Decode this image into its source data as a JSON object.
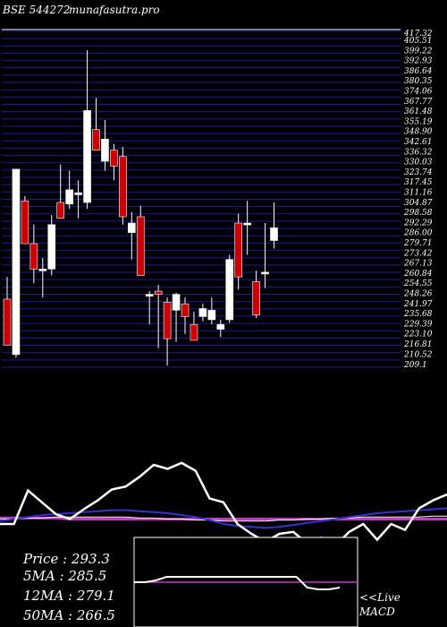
{
  "header": {
    "exchange_code": "BSE 544272",
    "site": "munafasutra.pro"
  },
  "price_axis": {
    "ymin": 205,
    "ymax": 417,
    "top_label": "417.32",
    "tick_labels": [
      "405.51",
      "399.22",
      "392.93",
      "386.64",
      "380.35",
      "374.06",
      "367.77",
      "361.48",
      "355.19",
      "348.90",
      "342.61",
      "336.32",
      "330.03",
      "323.74",
      "317.45",
      "311.16",
      "304.87",
      "298.58",
      "292.29",
      "286.00",
      "279.71",
      "273.42",
      "267.13",
      "260.84",
      "254.55",
      "248.26",
      "241.97",
      "235.68",
      "229.39",
      "223.10",
      "216.81",
      "210.52"
    ],
    "bottom_label": "209.1"
  },
  "colors": {
    "up": "#ffffff",
    "down": "#cc0000",
    "grid": "#1a1aa0",
    "ma5": "#3333cc",
    "ma_long": "#cc33cc",
    "macd": "#ffffff"
  },
  "chart_data": {
    "type": "candlestick",
    "candles": [
      {
        "o": 248,
        "h": 262,
        "l": 219,
        "c": 219
      },
      {
        "o": 213,
        "h": 330,
        "l": 211,
        "c": 330
      },
      {
        "o": 310,
        "h": 313,
        "l": 283,
        "c": 283
      },
      {
        "o": 283,
        "h": 295,
        "l": 258,
        "c": 267
      },
      {
        "o": 267,
        "h": 274,
        "l": 249,
        "c": 267
      },
      {
        "o": 267,
        "h": 301,
        "l": 263,
        "c": 295
      },
      {
        "o": 309,
        "h": 333,
        "l": 299,
        "c": 299
      },
      {
        "o": 308,
        "h": 329,
        "l": 305,
        "c": 317
      },
      {
        "o": 315,
        "h": 323,
        "l": 299,
        "c": 315
      },
      {
        "o": 309,
        "h": 405,
        "l": 305,
        "c": 367
      },
      {
        "o": 355,
        "h": 375,
        "l": 342,
        "c": 342
      },
      {
        "o": 335,
        "h": 361,
        "l": 329,
        "c": 349
      },
      {
        "o": 342,
        "h": 346,
        "l": 323,
        "c": 332
      },
      {
        "o": 338,
        "h": 344,
        "l": 295,
        "c": 300
      },
      {
        "o": 290,
        "h": 303,
        "l": 273,
        "c": 296
      },
      {
        "o": 300,
        "h": 307,
        "l": 263,
        "c": 263
      },
      {
        "o": 251,
        "h": 253,
        "l": 232,
        "c": 251
      },
      {
        "o": 253,
        "h": 257,
        "l": 217,
        "c": 251
      },
      {
        "o": 246,
        "h": 249,
        "l": 206,
        "c": 223
      },
      {
        "o": 241,
        "h": 252,
        "l": 221,
        "c": 251
      },
      {
        "o": 245,
        "h": 249,
        "l": 226,
        "c": 237
      },
      {
        "o": 232,
        "h": 240,
        "l": 222,
        "c": 222
      },
      {
        "o": 237,
        "h": 245,
        "l": 234,
        "c": 242
      },
      {
        "o": 235,
        "h": 249,
        "l": 232,
        "c": 241
      },
      {
        "o": 229,
        "h": 235,
        "l": 224,
        "c": 232
      },
      {
        "o": 235,
        "h": 276,
        "l": 233,
        "c": 273
      },
      {
        "o": 296,
        "h": 302,
        "l": 254,
        "c": 262
      },
      {
        "o": 296,
        "h": 310,
        "l": 276,
        "c": 296
      },
      {
        "o": 259,
        "h": 266,
        "l": 236,
        "c": 238
      },
      {
        "o": 265,
        "h": 296,
        "l": 255,
        "c": 265
      },
      {
        "o": 285,
        "h": 309,
        "l": 280,
        "c": 293
      }
    ],
    "lower_panel": {
      "price_line": [
        0,
        0,
        34,
        22,
        10,
        5,
        15,
        24,
        35,
        38,
        48,
        60,
        56,
        62,
        54,
        26,
        22,
        0,
        -10,
        -18,
        -10,
        -8,
        -20,
        -14,
        -22,
        -8,
        0,
        -16,
        0,
        -6,
        16,
        24,
        30
      ],
      "ma5_line": [
        3,
        5,
        7,
        9,
        10,
        11,
        12,
        13,
        14,
        14,
        13,
        12,
        11,
        9,
        7,
        4,
        0,
        -2,
        -3,
        -4,
        -3,
        -1,
        1,
        3,
        5,
        7,
        9,
        11,
        12,
        13,
        14,
        15,
        16
      ],
      "ma12_line": [
        5,
        5,
        6,
        6,
        7,
        7,
        7,
        7,
        7,
        7,
        6,
        6,
        5,
        5,
        4,
        4,
        3,
        3,
        3,
        3,
        4,
        4,
        5,
        5,
        6,
        6,
        7,
        7,
        7,
        7,
        7,
        8,
        8
      ],
      "ma50_line": [
        6,
        6,
        6,
        6,
        6,
        5,
        5,
        5,
        5,
        5,
        5,
        5,
        5,
        5,
        5,
        5,
        5,
        5,
        5,
        5,
        5,
        5,
        5,
        5,
        5,
        5,
        5,
        5,
        5,
        5,
        5,
        5,
        5
      ],
      "macd_signal": [
        0,
        0,
        0,
        0,
        0,
        0,
        0,
        0,
        0,
        0,
        0,
        0,
        0,
        0,
        0,
        0,
        0,
        0,
        0,
        0
      ],
      "macd_line": [
        0,
        0,
        2,
        6,
        6,
        6,
        6,
        6,
        6,
        6,
        6,
        6,
        6,
        6,
        6,
        6,
        -6,
        -8,
        -8,
        -6
      ]
    }
  },
  "stats": {
    "price": "Price   : 293.3",
    "ma5": "5MA : 285.5",
    "ma12": "12MA : 279.1",
    "ma50": "50MA : 266.5"
  },
  "live": {
    "line1": "<<Live",
    "line2": "MACD"
  }
}
